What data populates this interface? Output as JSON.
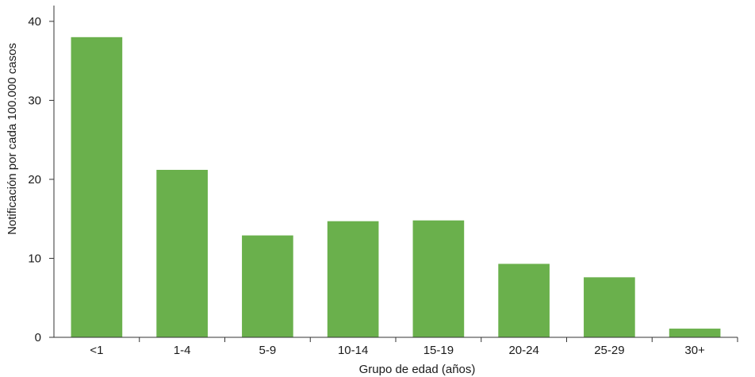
{
  "chart_data": {
    "type": "bar",
    "categories": [
      "<1",
      "1-4",
      "5-9",
      "10-14",
      "15-19",
      "20-24",
      "25-29",
      "30+"
    ],
    "values": [
      38,
      21.2,
      12.9,
      14.7,
      14.8,
      9.3,
      7.6,
      1.1
    ],
    "title": "",
    "xlabel": "Grupo de edad (años)",
    "ylabel": "Notificación por cada 100.000 casos",
    "ylim": [
      0,
      42
    ],
    "yticks": [
      0,
      10,
      20,
      30,
      40
    ],
    "bar_color": "#6ab04c",
    "grid": false,
    "legend": "none"
  }
}
